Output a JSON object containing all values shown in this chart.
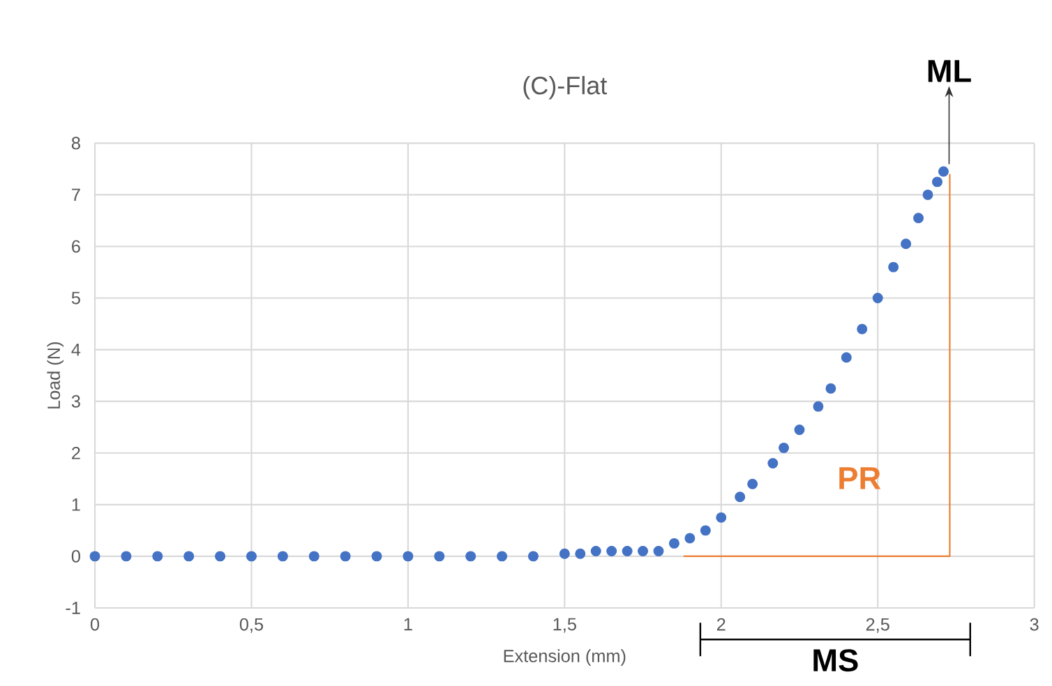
{
  "chart_data": {
    "type": "scatter",
    "title": "(C)-Flat",
    "xlabel": "Extension (mm)",
    "ylabel": "Load (N)",
    "series": [
      {
        "color": "#4472c4",
        "marker": "circle",
        "x": [
          0,
          0.1,
          0.2,
          0.3,
          0.4,
          0.5,
          0.6,
          0.7,
          0.8,
          0.9,
          1.0,
          1.1,
          1.2,
          1.3,
          1.4,
          1.5,
          1.55,
          1.6,
          1.65,
          1.7,
          1.75,
          1.8,
          1.85,
          1.9,
          1.95,
          2.0,
          2.06,
          2.1,
          2.165,
          2.2,
          2.25,
          2.31,
          2.35,
          2.4,
          2.45,
          2.5,
          2.55,
          2.59,
          2.63,
          2.66,
          2.69,
          2.71
        ],
        "values": [
          0,
          0,
          0,
          0,
          0,
          0,
          0,
          0,
          0,
          0,
          0,
          0,
          0,
          0,
          0,
          0.05,
          0.05,
          0.1,
          0.1,
          0.1,
          0.1,
          0.1,
          0.25,
          0.35,
          0.5,
          0.75,
          1.15,
          1.4,
          1.8,
          2.1,
          2.45,
          2.9,
          3.25,
          3.85,
          4.4,
          5.0,
          5.6,
          6.05,
          6.55,
          7.0,
          7.25,
          7.45
        ]
      },
      {
        "type": "line",
        "color": "#ed7d31",
        "marker": "none",
        "x": [
          1.88,
          2.73,
          2.73
        ],
        "values": [
          0,
          0,
          7.4
        ]
      }
    ],
    "grid": true,
    "xlim": [
      0,
      3
    ],
    "ylim": [
      -1,
      8
    ],
    "xticks": [
      0,
      {
        "value": 0.5,
        "label": "0,5"
      },
      1,
      {
        "value": 1.5,
        "label": "1,5"
      },
      2,
      {
        "value": 2.5,
        "label": "2,5"
      },
      3
    ],
    "yticks": [
      -1,
      0,
      1,
      2,
      3,
      4,
      5,
      6,
      7,
      8
    ],
    "annotations": [
      "ML",
      "PR",
      "MS"
    ]
  }
}
